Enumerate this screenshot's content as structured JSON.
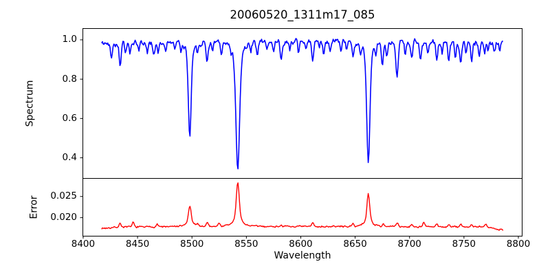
{
  "title": "20060520_1311m17_085",
  "colors": {
    "spectrum_line": "#0000ff",
    "error_line": "#ff0000",
    "axis": "#000000",
    "background": "#ffffff",
    "text": "#000000"
  },
  "axes": {
    "x": {
      "label": "Wavelength",
      "tick_labels": [
        "8400",
        "8450",
        "8500",
        "8550",
        "8600",
        "8650",
        "8700",
        "8750",
        "8800"
      ],
      "tick_values": [
        8400,
        8450,
        8500,
        8550,
        8600,
        8650,
        8700,
        8750,
        8800
      ],
      "lim": [
        8399.4,
        8803.8
      ]
    },
    "top_y": {
      "label": "Spectrum",
      "tick_labels": [
        "1.0",
        "0.8",
        "0.6",
        "0.4"
      ],
      "tick_values": [
        1.0,
        0.8,
        0.6,
        0.4
      ],
      "lim": [
        0.2952,
        1.0575
      ]
    },
    "bottom_y": {
      "label": "Error",
      "tick_labels": [
        "0.025",
        "0.020"
      ],
      "tick_values": [
        0.025,
        0.02
      ],
      "lim": [
        0.01565,
        0.02925
      ]
    }
  },
  "chart_data": {
    "type": "line",
    "title": "20060520_1311m17_085",
    "xlabel": "Wavelength",
    "x_range": [
      8417,
      8786
    ],
    "sample_step": 0.7,
    "xticks": [
      8400,
      8450,
      8500,
      8550,
      8600,
      8650,
      8700,
      8750,
      8800
    ],
    "legend": "none",
    "grid": false,
    "panels": [
      {
        "name": "spectrum",
        "ylabel": "Spectrum",
        "ylim": [
          0.2952,
          1.0575
        ],
        "yticks": [
          0.4,
          0.6,
          0.8,
          1.0
        ],
        "color": "#0000ff",
        "continuum": {
          "base": 0.975,
          "bump_center": 8605,
          "bump_amp": 0.015,
          "bump_width": 140
        },
        "noise": {
          "smooth_amp": 0.022,
          "white_amp": 0.005,
          "seed": 42
        },
        "absorption_lines": [
          {
            "center": 8498.0,
            "depth": 0.483,
            "width": 1.2,
            "strong": true
          },
          {
            "center": 8542.1,
            "depth": 0.648,
            "width": 1.6,
            "strong": true
          },
          {
            "center": 8662.1,
            "depth": 0.613,
            "width": 1.4,
            "strong": true
          },
          {
            "center": 8426,
            "depth": 0.07,
            "width": 0.8
          },
          {
            "center": 8434,
            "depth": 0.11,
            "width": 0.9
          },
          {
            "center": 8439,
            "depth": 0.05,
            "width": 0.7
          },
          {
            "center": 8443,
            "depth": 0.055,
            "width": 0.7
          },
          {
            "center": 8451,
            "depth": 0.04,
            "width": 0.7
          },
          {
            "center": 8459,
            "depth": 0.05,
            "width": 0.7
          },
          {
            "center": 8465,
            "depth": 0.06,
            "width": 0.8
          },
          {
            "center": 8469,
            "depth": 0.05,
            "width": 0.7
          },
          {
            "center": 8476,
            "depth": 0.04,
            "width": 0.6
          },
          {
            "center": 8484,
            "depth": 0.04,
            "width": 0.6
          },
          {
            "center": 8490,
            "depth": 0.05,
            "width": 0.7
          },
          {
            "center": 8505,
            "depth": 0.04,
            "width": 0.6
          },
          {
            "center": 8514,
            "depth": 0.09,
            "width": 0.9
          },
          {
            "center": 8519,
            "depth": 0.05,
            "width": 0.7
          },
          {
            "center": 8527,
            "depth": 0.06,
            "width": 0.8
          },
          {
            "center": 8536,
            "depth": 0.04,
            "width": 0.6
          },
          {
            "center": 8554,
            "depth": 0.05,
            "width": 0.7
          },
          {
            "center": 8560,
            "depth": 0.06,
            "width": 0.8
          },
          {
            "center": 8569,
            "depth": 0.04,
            "width": 0.6
          },
          {
            "center": 8575,
            "depth": 0.05,
            "width": 0.7
          },
          {
            "center": 8582,
            "depth": 0.09,
            "width": 0.9
          },
          {
            "center": 8590,
            "depth": 0.04,
            "width": 0.6
          },
          {
            "center": 8598,
            "depth": 0.06,
            "width": 0.8
          },
          {
            "center": 8605,
            "depth": 0.04,
            "width": 0.6
          },
          {
            "center": 8611,
            "depth": 0.1,
            "width": 0.9
          },
          {
            "center": 8617,
            "depth": 0.04,
            "width": 0.6
          },
          {
            "center": 8621,
            "depth": 0.06,
            "width": 0.7
          },
          {
            "center": 8627,
            "depth": 0.05,
            "width": 0.7
          },
          {
            "center": 8637,
            "depth": 0.06,
            "width": 0.8
          },
          {
            "center": 8642,
            "depth": 0.04,
            "width": 0.6
          },
          {
            "center": 8648,
            "depth": 0.07,
            "width": 0.8
          },
          {
            "center": 8655,
            "depth": 0.05,
            "width": 0.7
          },
          {
            "center": 8669,
            "depth": 0.05,
            "width": 0.7
          },
          {
            "center": 8675,
            "depth": 0.1,
            "width": 0.9
          },
          {
            "center": 8679,
            "depth": 0.07,
            "width": 0.8
          },
          {
            "center": 8688.5,
            "depth": 0.17,
            "width": 1.0
          },
          {
            "center": 8696,
            "depth": 0.06,
            "width": 0.7
          },
          {
            "center": 8702,
            "depth": 0.08,
            "width": 0.8
          },
          {
            "center": 8710,
            "depth": 0.09,
            "width": 0.8
          },
          {
            "center": 8717,
            "depth": 0.06,
            "width": 0.7
          },
          {
            "center": 8725,
            "depth": 0.09,
            "width": 0.8
          },
          {
            "center": 8730,
            "depth": 0.05,
            "width": 0.6
          },
          {
            "center": 8736,
            "depth": 0.1,
            "width": 0.8
          },
          {
            "center": 8742,
            "depth": 0.08,
            "width": 0.7
          },
          {
            "center": 8747,
            "depth": 0.11,
            "width": 0.9
          },
          {
            "center": 8752,
            "depth": 0.06,
            "width": 0.7
          },
          {
            "center": 8757,
            "depth": 0.1,
            "width": 0.8
          },
          {
            "center": 8764,
            "depth": 0.07,
            "width": 0.7
          },
          {
            "center": 8769,
            "depth": 0.05,
            "width": 0.6
          },
          {
            "center": 8772,
            "depth": 0.04,
            "width": 0.6
          },
          {
            "center": 8778,
            "depth": 0.05,
            "width": 0.7
          },
          {
            "center": 8783,
            "depth": 0.04,
            "width": 0.6
          }
        ]
      },
      {
        "name": "error",
        "ylabel": "Error",
        "ylim": [
          0.01565,
          0.02925
        ],
        "yticks": [
          0.02,
          0.025
        ],
        "color": "#ff0000",
        "baseline": 0.0177,
        "noise": {
          "smooth_amp": 0.00028,
          "white_amp": 0.00012,
          "seed": 7
        },
        "peaks": [
          {
            "center": 8498.0,
            "amp": 0.0049,
            "width": 1.1,
            "strong": true
          },
          {
            "center": 8542.1,
            "amp": 0.0104,
            "width": 1.2,
            "strong": true
          },
          {
            "center": 8662.1,
            "amp": 0.0078,
            "width": 1.1,
            "strong": true
          },
          {
            "center": 8434,
            "amp": 0.0009,
            "width": 0.9
          },
          {
            "center": 8446,
            "amp": 0.001,
            "width": 0.9
          },
          {
            "center": 8468,
            "amp": 0.0007,
            "width": 0.8
          },
          {
            "center": 8505,
            "amp": 0.0006,
            "width": 0.8
          },
          {
            "center": 8514,
            "amp": 0.001,
            "width": 0.9
          },
          {
            "center": 8525,
            "amp": 0.0008,
            "width": 0.8
          },
          {
            "center": 8582,
            "amp": 0.0005,
            "width": 0.8
          },
          {
            "center": 8611,
            "amp": 0.0009,
            "width": 0.9
          },
          {
            "center": 8648,
            "amp": 0.0005,
            "width": 0.8
          },
          {
            "center": 8676,
            "amp": 0.0007,
            "width": 0.8
          },
          {
            "center": 8688.5,
            "amp": 0.0009,
            "width": 0.9
          },
          {
            "center": 8702,
            "amp": 0.0006,
            "width": 0.8
          },
          {
            "center": 8713,
            "amp": 0.001,
            "width": 0.9
          },
          {
            "center": 8725,
            "amp": 0.0006,
            "width": 0.8
          },
          {
            "center": 8736,
            "amp": 0.0006,
            "width": 0.8
          },
          {
            "center": 8747,
            "amp": 0.0007,
            "width": 0.8
          },
          {
            "center": 8757,
            "amp": 0.0006,
            "width": 0.8
          },
          {
            "center": 8770,
            "amp": 0.0007,
            "width": 0.8
          }
        ]
      }
    ]
  }
}
